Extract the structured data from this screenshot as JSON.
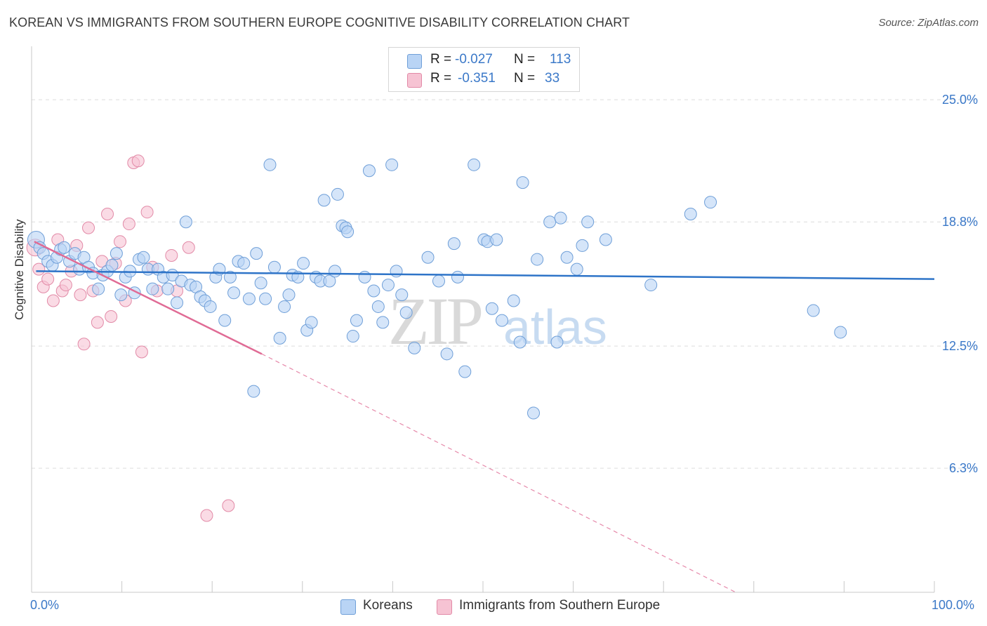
{
  "header": {
    "title": "KOREAN VS IMMIGRANTS FROM SOUTHERN EUROPE COGNITIVE DISABILITY CORRELATION CHART",
    "source": "Source: ZipAtlas.com"
  },
  "legend_top": {
    "rows": [
      {
        "r_label": "R =",
        "r_value": "-0.027",
        "n_label": "N =",
        "n_value": "113"
      },
      {
        "r_label": "R =",
        "r_value": "-0.351",
        "n_label": "N =",
        "n_value": "33"
      }
    ]
  },
  "legend_bottom": {
    "koreans": "Koreans",
    "immigrants": "Immigrants from Southern Europe"
  },
  "axis": {
    "x_min_label": "0.0%",
    "x_max_label": "100.0%",
    "y_label": "Cognitive Disability"
  },
  "colors": {
    "blue_fill": "#b9d4f5",
    "blue_stroke": "#6f9fd8",
    "blue_line": "#2e74c8",
    "pink_fill": "#f6c3d3",
    "pink_stroke": "#e28aa7",
    "pink_line": "#e06b95",
    "grid": "#dcdcdc",
    "tick_text": "#3a78c8"
  },
  "chart_data": {
    "type": "scatter",
    "title": "KOREAN VS IMMIGRANTS FROM SOUTHERN EUROPE COGNITIVE DISABILITY CORRELATION CHART",
    "xlabel": "",
    "ylabel": "Cognitive Disability",
    "xlim": [
      0,
      100
    ],
    "ylim": [
      0,
      27.5
    ],
    "y_ticks": [
      {
        "value": 6.3,
        "label": "6.3%"
      },
      {
        "value": 12.5,
        "label": "12.5%"
      },
      {
        "value": 18.8,
        "label": "18.8%"
      },
      {
        "value": 25.0,
        "label": "25.0%"
      }
    ],
    "x_tick_values": [
      10,
      20,
      30,
      40,
      50,
      60,
      70,
      80,
      90,
      100
    ],
    "watermark": {
      "zip": "ZIP",
      "atlas": "atlas"
    },
    "series": [
      {
        "name": "Koreans",
        "color": "blue",
        "r": -0.027,
        "n": 113,
        "trend": {
          "x0": 0.5,
          "y0": 16.3,
          "x1": 100,
          "y1": 15.9
        },
        "points": [
          [
            0.5,
            17.9
          ],
          [
            0.9,
            17.5
          ],
          [
            1.3,
            17.2
          ],
          [
            1.8,
            16.8
          ],
          [
            2.3,
            16.6
          ],
          [
            2.8,
            17.0
          ],
          [
            3.2,
            17.4
          ],
          [
            3.6,
            17.5
          ],
          [
            4.2,
            16.8
          ],
          [
            4.8,
            17.2
          ],
          [
            5.3,
            16.4
          ],
          [
            5.8,
            17.0
          ],
          [
            6.3,
            16.5
          ],
          [
            6.8,
            16.2
          ],
          [
            7.4,
            15.4
          ],
          [
            7.9,
            16.1
          ],
          [
            8.4,
            16.3
          ],
          [
            9.4,
            17.2
          ],
          [
            9.9,
            15.1
          ],
          [
            10.4,
            16.0
          ],
          [
            10.9,
            16.3
          ],
          [
            11.4,
            15.2
          ],
          [
            11.9,
            16.9
          ],
          [
            12.4,
            17.0
          ],
          [
            12.9,
            16.4
          ],
          [
            13.4,
            15.4
          ],
          [
            14.0,
            16.4
          ],
          [
            14.6,
            16.0
          ],
          [
            15.1,
            15.4
          ],
          [
            15.6,
            16.1
          ],
          [
            16.1,
            14.7
          ],
          [
            16.6,
            15.8
          ],
          [
            17.1,
            18.8
          ],
          [
            17.6,
            15.6
          ],
          [
            18.2,
            15.5
          ],
          [
            18.7,
            15.0
          ],
          [
            19.2,
            14.8
          ],
          [
            19.8,
            14.5
          ],
          [
            20.4,
            16.0
          ],
          [
            20.8,
            16.4
          ],
          [
            21.4,
            13.8
          ],
          [
            22.0,
            16.0
          ],
          [
            22.4,
            15.2
          ],
          [
            22.9,
            16.8
          ],
          [
            23.5,
            16.7
          ],
          [
            24.1,
            14.9
          ],
          [
            24.6,
            10.2
          ],
          [
            24.9,
            17.2
          ],
          [
            25.4,
            15.7
          ],
          [
            25.9,
            14.9
          ],
          [
            26.4,
            21.7
          ],
          [
            26.9,
            16.5
          ],
          [
            27.5,
            12.9
          ],
          [
            28.0,
            14.5
          ],
          [
            28.5,
            15.1
          ],
          [
            28.9,
            16.1
          ],
          [
            29.5,
            16.0
          ],
          [
            30.1,
            16.7
          ],
          [
            30.5,
            13.3
          ],
          [
            31.0,
            13.7
          ],
          [
            31.5,
            16.0
          ],
          [
            32.0,
            15.8
          ],
          [
            32.4,
            19.9
          ],
          [
            33.0,
            15.8
          ],
          [
            33.6,
            16.3
          ],
          [
            33.9,
            20.2
          ],
          [
            34.4,
            18.6
          ],
          [
            34.8,
            18.5
          ],
          [
            35.0,
            18.3
          ],
          [
            35.6,
            13.0
          ],
          [
            36.0,
            13.8
          ],
          [
            36.9,
            16.0
          ],
          [
            37.4,
            21.4
          ],
          [
            37.9,
            15.3
          ],
          [
            38.4,
            14.5
          ],
          [
            38.9,
            13.7
          ],
          [
            39.5,
            15.6
          ],
          [
            39.9,
            21.7
          ],
          [
            40.4,
            16.3
          ],
          [
            41.0,
            15.1
          ],
          [
            41.5,
            14.2
          ],
          [
            42.4,
            12.4
          ],
          [
            43.9,
            17.0
          ],
          [
            45.1,
            15.8
          ],
          [
            46.0,
            12.1
          ],
          [
            46.8,
            17.7
          ],
          [
            47.2,
            16.0
          ],
          [
            48.0,
            11.2
          ],
          [
            49.0,
            21.7
          ],
          [
            50.1,
            17.9
          ],
          [
            50.5,
            17.8
          ],
          [
            51.0,
            14.4
          ],
          [
            51.5,
            17.9
          ],
          [
            52.1,
            13.8
          ],
          [
            53.4,
            14.8
          ],
          [
            54.1,
            12.7
          ],
          [
            54.4,
            20.8
          ],
          [
            55.6,
            9.1
          ],
          [
            56.0,
            16.9
          ],
          [
            57.4,
            18.8
          ],
          [
            58.2,
            12.7
          ],
          [
            58.6,
            19.0
          ],
          [
            59.3,
            17.0
          ],
          [
            60.4,
            16.4
          ],
          [
            61.0,
            17.6
          ],
          [
            61.6,
            18.8
          ],
          [
            63.6,
            17.9
          ],
          [
            68.6,
            15.6
          ],
          [
            73.0,
            19.2
          ],
          [
            75.2,
            19.8
          ],
          [
            86.6,
            14.3
          ],
          [
            89.6,
            13.2
          ],
          [
            8.9,
            16.6
          ]
        ]
      },
      {
        "name": "Immigrants from Southern Europe",
        "color": "pink",
        "r": -0.351,
        "n": 33,
        "trend": {
          "x0": 0.3,
          "y0": 17.8,
          "x1": 25.5,
          "y1": 12.1
        },
        "trend_extension": {
          "x0": 25.5,
          "y0": 12.1,
          "x1": 78.0,
          "y1": 0
        },
        "points": [
          [
            0.4,
            17.5
          ],
          [
            0.8,
            16.4
          ],
          [
            1.3,
            15.5
          ],
          [
            1.8,
            15.9
          ],
          [
            2.4,
            14.8
          ],
          [
            2.9,
            17.9
          ],
          [
            3.4,
            15.3
          ],
          [
            3.8,
            15.6
          ],
          [
            4.4,
            16.3
          ],
          [
            5.0,
            17.6
          ],
          [
            5.4,
            15.1
          ],
          [
            5.8,
            12.6
          ],
          [
            6.3,
            18.5
          ],
          [
            6.8,
            15.3
          ],
          [
            7.3,
            13.7
          ],
          [
            7.8,
            16.8
          ],
          [
            8.4,
            19.2
          ],
          [
            8.8,
            14.0
          ],
          [
            9.3,
            16.7
          ],
          [
            9.8,
            17.8
          ],
          [
            10.4,
            14.8
          ],
          [
            10.8,
            18.7
          ],
          [
            11.3,
            21.8
          ],
          [
            11.8,
            21.9
          ],
          [
            12.2,
            12.2
          ],
          [
            12.8,
            19.3
          ],
          [
            13.4,
            16.5
          ],
          [
            13.9,
            15.3
          ],
          [
            15.5,
            17.1
          ],
          [
            16.1,
            15.3
          ],
          [
            17.4,
            17.5
          ],
          [
            19.4,
            3.9
          ],
          [
            21.8,
            4.4
          ]
        ]
      }
    ]
  }
}
